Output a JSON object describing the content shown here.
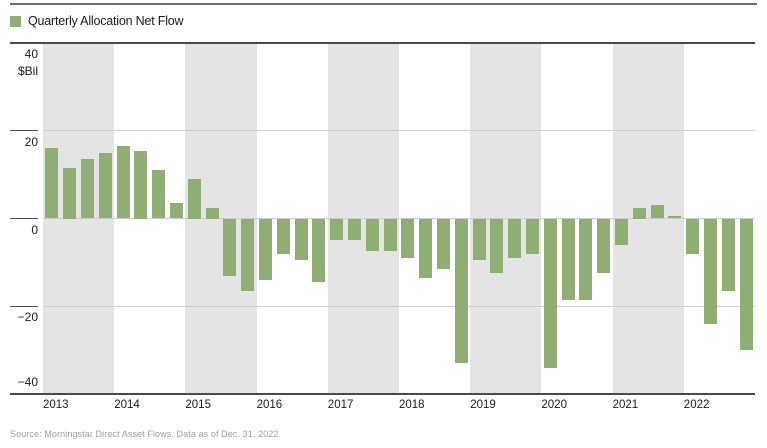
{
  "legend": {
    "label": "Quarterly Allocation Net Flow",
    "swatch_color": "#8fae73"
  },
  "source_note": "Source: Morningstar Direct Asset Flows. Data as of Dec. 31, 2022",
  "colors": {
    "bar": "#8fae73",
    "year_band": "#e4e4e4",
    "gridline_light": "#cccccc",
    "axis_dark": "#4a4a4a",
    "top_rule": "#6e6e6e",
    "text": "#1a1a1a",
    "muted_text": "#9e9e9e"
  },
  "chart_data": {
    "type": "bar",
    "title": "Quarterly Allocation Net Flow",
    "unit": "$Bil",
    "ylabel": "$Bil",
    "xlabel": "",
    "ylim": [
      -40,
      40
    ],
    "y_ticks": [
      40,
      20,
      0,
      -20,
      -40
    ],
    "grid": "horizontal",
    "legend_position": "top-left",
    "background_bands": "alternating gray bands per year, starting gray at 2013",
    "quarters_per_year": 4,
    "groups": [
      {
        "year": "2013",
        "values": [
          16,
          11.5,
          13.5,
          15
        ]
      },
      {
        "year": "2014",
        "values": [
          16.5,
          15.5,
          11,
          3.5
        ]
      },
      {
        "year": "2015",
        "values": [
          9,
          2.5,
          -13,
          -16.5
        ]
      },
      {
        "year": "2016",
        "values": [
          -14,
          -8,
          -9.5,
          -14.5
        ]
      },
      {
        "year": "2017",
        "values": [
          -5,
          -5,
          -7.5,
          -7.5
        ]
      },
      {
        "year": "2018",
        "values": [
          -9,
          -13.5,
          -11.5,
          -33
        ]
      },
      {
        "year": "2019",
        "values": [
          -9.5,
          -12.5,
          -9,
          -8
        ]
      },
      {
        "year": "2020",
        "values": [
          -34,
          -18.5,
          -18.5,
          -12.5
        ]
      },
      {
        "year": "2021",
        "values": [
          -6,
          2.5,
          3,
          0.5
        ]
      },
      {
        "year": "2022",
        "values": [
          -8,
          -24,
          -16.5,
          -30
        ]
      }
    ]
  }
}
